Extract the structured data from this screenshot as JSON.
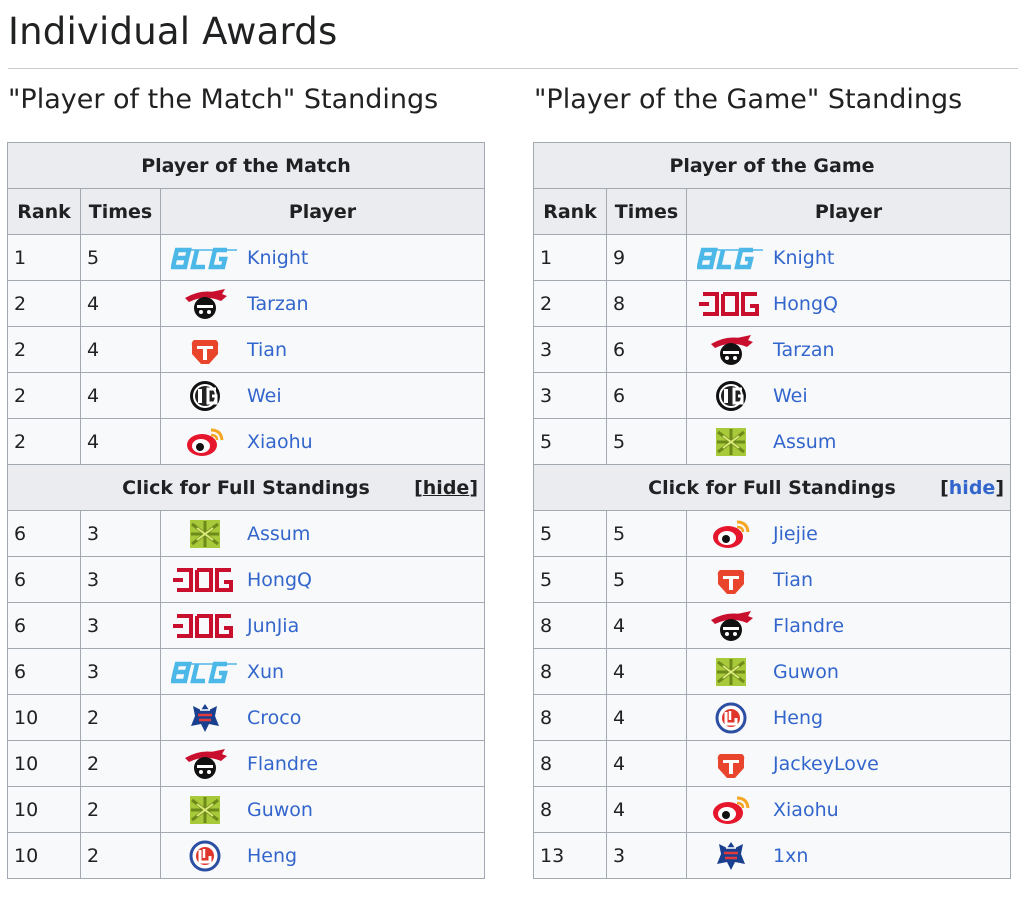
{
  "page": {
    "title": "Individual Awards"
  },
  "left": {
    "heading": "\"Player of the Match\" Standings",
    "table_title": "Player of the Match",
    "columns": [
      "Rank",
      "Times",
      "Player"
    ],
    "top_rows": [
      {
        "rank": "1",
        "times": "5",
        "team_logo": "blg-logo",
        "player": "Knight"
      },
      {
        "rank": "2",
        "times": "4",
        "team_logo": "lng-logo",
        "player": "Tarzan"
      },
      {
        "rank": "2",
        "times": "4",
        "team_logo": "tes-logo",
        "player": "Tian"
      },
      {
        "rank": "2",
        "times": "4",
        "team_logo": "ig-logo",
        "player": "Wei"
      },
      {
        "rank": "2",
        "times": "4",
        "team_logo": "wbg-logo",
        "player": "Xiaohu"
      }
    ],
    "toggle_text": "Click for Full Standings",
    "hide_label": "hide",
    "rest_rows": [
      {
        "rank": "6",
        "times": "3",
        "team_logo": "nip-logo",
        "player": "Assum"
      },
      {
        "rank": "6",
        "times": "3",
        "team_logo": "jdg-logo",
        "player": "HongQ"
      },
      {
        "rank": "6",
        "times": "3",
        "team_logo": "jdg-logo",
        "player": "JunJia"
      },
      {
        "rank": "6",
        "times": "3",
        "team_logo": "blg-logo",
        "player": "Xun"
      },
      {
        "rank": "10",
        "times": "2",
        "team_logo": "we-logo",
        "player": "Croco"
      },
      {
        "rank": "10",
        "times": "2",
        "team_logo": "lng-logo",
        "player": "Flandre"
      },
      {
        "rank": "10",
        "times": "2",
        "team_logo": "nip-logo",
        "player": "Guwon"
      },
      {
        "rank": "10",
        "times": "2",
        "team_logo": "lgd-logo",
        "player": "Heng"
      }
    ]
  },
  "right": {
    "heading": "\"Player of the Game\" Standings",
    "table_title": "Player of the Game",
    "columns": [
      "Rank",
      "Times",
      "Player"
    ],
    "top_rows": [
      {
        "rank": "1",
        "times": "9",
        "team_logo": "blg-logo",
        "player": "Knight"
      },
      {
        "rank": "2",
        "times": "8",
        "team_logo": "jdg-logo",
        "player": "HongQ"
      },
      {
        "rank": "3",
        "times": "6",
        "team_logo": "lng-logo",
        "player": "Tarzan"
      },
      {
        "rank": "3",
        "times": "6",
        "team_logo": "ig-logo",
        "player": "Wei"
      },
      {
        "rank": "5",
        "times": "5",
        "team_logo": "nip-logo",
        "player": "Assum"
      }
    ],
    "toggle_text": "Click for Full Standings",
    "hide_label": "hide",
    "rest_rows": [
      {
        "rank": "5",
        "times": "5",
        "team_logo": "wbg-logo",
        "player": "Jiejie"
      },
      {
        "rank": "5",
        "times": "5",
        "team_logo": "tes-logo",
        "player": "Tian"
      },
      {
        "rank": "8",
        "times": "4",
        "team_logo": "lng-logo",
        "player": "Flandre"
      },
      {
        "rank": "8",
        "times": "4",
        "team_logo": "nip-logo",
        "player": "Guwon"
      },
      {
        "rank": "8",
        "times": "4",
        "team_logo": "lgd-logo",
        "player": "Heng"
      },
      {
        "rank": "8",
        "times": "4",
        "team_logo": "tes-logo",
        "player": "JackeyLove"
      },
      {
        "rank": "8",
        "times": "4",
        "team_logo": "wbg-logo",
        "player": "Xiaohu"
      },
      {
        "rank": "13",
        "times": "3",
        "team_logo": "we-logo",
        "player": "1xn"
      }
    ]
  },
  "colors": {
    "link": "#3366cc",
    "header_bg": "#eaecf0",
    "cell_bg": "#f8f9fa",
    "border": "#a2a9b1",
    "blg": "#4cb8e8",
    "jdg": "#c8102e",
    "tes": "#e8452c",
    "nip": "#a8c93a"
  }
}
